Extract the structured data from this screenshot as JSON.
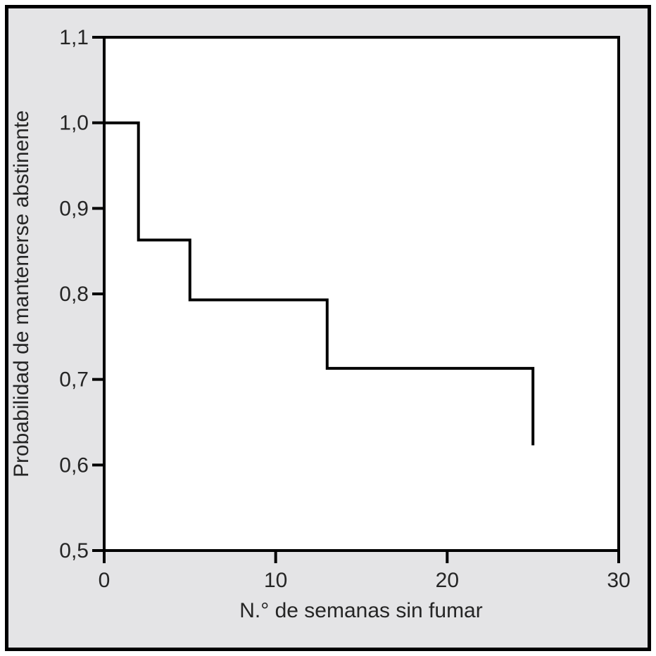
{
  "figure": {
    "background_color": "#e4e4e6",
    "plot_background_color": "#ffffff",
    "frame_border_color": "#000000",
    "axis_color": "#000000",
    "curve_color": "#000000",
    "text_color": "#252525"
  },
  "chart_data": {
    "type": "line",
    "variant": "kaplan-meier-step",
    "title": "",
    "xlabel": "N.° de semanas sin fumar",
    "ylabel": "Probabilidad de mantenerse abstinente",
    "xlim": [
      0,
      30
    ],
    "ylim": [
      0.5,
      1.1
    ],
    "grid": false,
    "legend": false,
    "x_ticks": [
      {
        "value": 0,
        "label": "0"
      },
      {
        "value": 10,
        "label": "10"
      },
      {
        "value": 20,
        "label": "20"
      },
      {
        "value": 30,
        "label": "30"
      }
    ],
    "y_ticks": [
      {
        "value": 1.1,
        "label": "1,1"
      },
      {
        "value": 1.0,
        "label": "1,0"
      },
      {
        "value": 0.9,
        "label": "0,9"
      },
      {
        "value": 0.8,
        "label": "0,8"
      },
      {
        "value": 0.7,
        "label": "0,7"
      },
      {
        "value": 0.6,
        "label": "0,6"
      },
      {
        "value": 0.5,
        "label": "0,5"
      }
    ],
    "series": [
      {
        "step_points": [
          {
            "x": 0,
            "y": 1.0
          },
          {
            "x": 2,
            "y": 1.0
          },
          {
            "x": 2,
            "y": 0.863
          },
          {
            "x": 5,
            "y": 0.863
          },
          {
            "x": 5,
            "y": 0.793
          },
          {
            "x": 13,
            "y": 0.793
          },
          {
            "x": 13,
            "y": 0.713
          },
          {
            "x": 25,
            "y": 0.713
          },
          {
            "x": 25,
            "y": 0.623
          }
        ]
      }
    ]
  }
}
